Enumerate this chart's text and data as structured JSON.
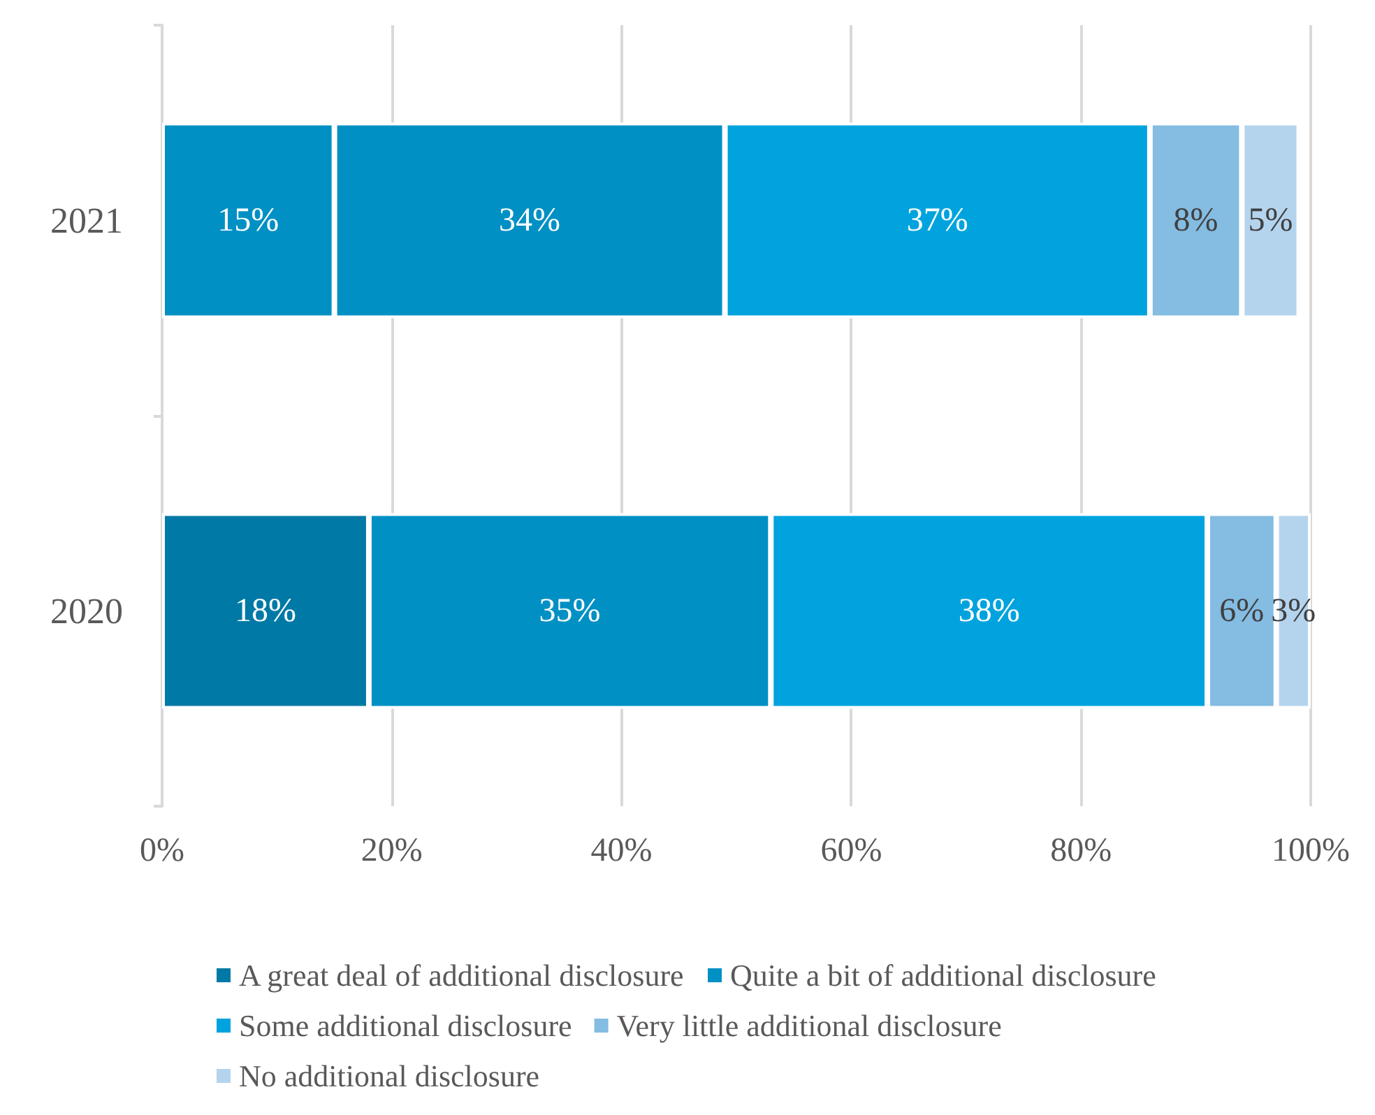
{
  "chart_data": {
    "type": "bar",
    "orientation": "horizontal",
    "stacked": true,
    "categories": [
      "2021",
      "2020"
    ],
    "series": [
      {
        "name": "A great deal of additional disclosure",
        "color": "#0079a6",
        "colors": [
          "#0090c4",
          "#0079a6"
        ],
        "values": [
          15,
          18
        ],
        "value_labels": [
          "15%",
          "18%"
        ]
      },
      {
        "name": "Quite a bit of additional disclosure",
        "color": "#0090c4",
        "values": [
          34,
          35
        ],
        "value_labels": [
          "34%",
          "35%"
        ]
      },
      {
        "name": "Some additional disclosure",
        "color": "#00a3de",
        "values": [
          37,
          38
        ],
        "value_labels": [
          "37%",
          "38%"
        ]
      },
      {
        "name": "Very little additional disclosure",
        "color": "#84bce2",
        "values": [
          8,
          6
        ],
        "value_labels": [
          "8%",
          "6%"
        ]
      },
      {
        "name": "No additional disclosure",
        "color": "#b4d4ee",
        "values": [
          5,
          3
        ],
        "value_labels": [
          "5%",
          "3%"
        ]
      }
    ],
    "xlim": [
      0,
      100
    ],
    "xticks": [
      {
        "value": 0,
        "label": "0%"
      },
      {
        "value": 20,
        "label": "20%"
      },
      {
        "value": 40,
        "label": "40%"
      },
      {
        "value": 60,
        "label": "60%"
      },
      {
        "value": 80,
        "label": "80%"
      },
      {
        "value": 100,
        "label": "100%"
      }
    ],
    "grid": "x",
    "legend": "bottom"
  }
}
